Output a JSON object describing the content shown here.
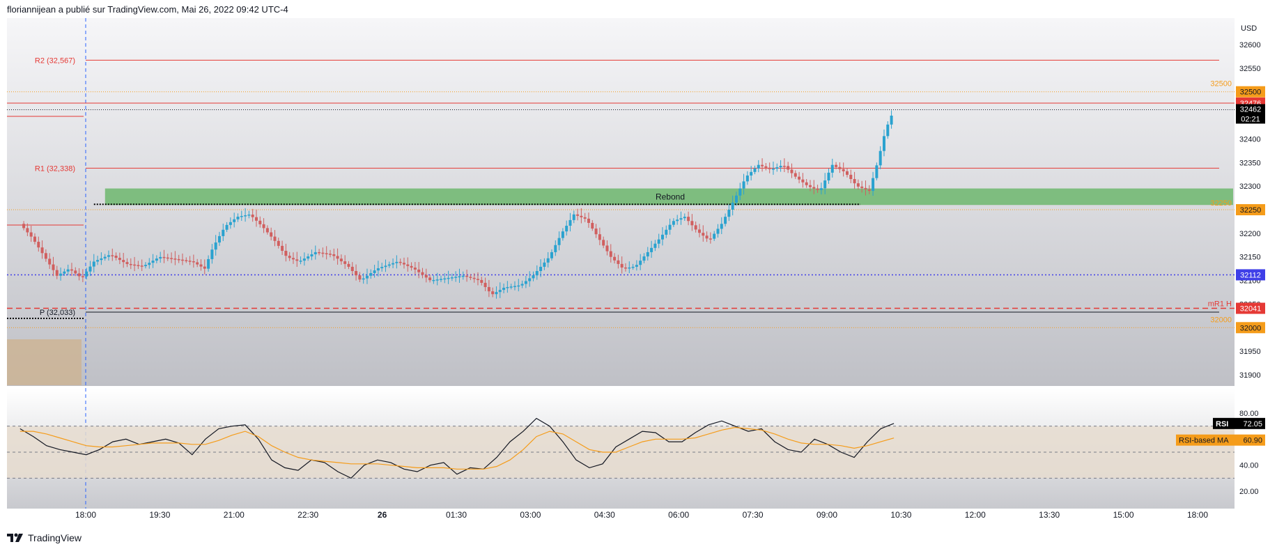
{
  "header": {
    "published_text": "floriannijean a publié sur TradingView.com, Mai 26, 2022 09:42 UTC-4"
  },
  "footer": {
    "brand_text": "TradingView"
  },
  "colors": {
    "bull": "#2aa2cf",
    "bear": "#d05f5f",
    "resistance": "#e53935",
    "orange_level": "#f59c1a",
    "pivot_blue": "#3f3fe8",
    "zone_green": "#66b566",
    "rsi_line": "#131722",
    "rsi_ma": "#f59c1a",
    "rsi_band": "#e6dccf"
  },
  "chart_data": [
    {
      "type": "candlestick",
      "title": "",
      "price_unit": "USD",
      "ylim": [
        31850,
        32650
      ],
      "y_ticks": [
        31900,
        31950,
        32000,
        32050,
        32100,
        32150,
        32200,
        32250,
        32300,
        32350,
        32400,
        32450,
        32500,
        32550,
        32600
      ],
      "x_ticks": [
        "18:00",
        "19:30",
        "21:00",
        "22:30",
        "26",
        "01:30",
        "03:00",
        "04:30",
        "06:00",
        "07:30",
        "09:00",
        "10:30",
        "12:00",
        "13:30",
        "15:00",
        "18:00"
      ],
      "grid": false,
      "close_path": [
        [
          "16:40",
          32220
        ],
        [
          "16:55",
          32190
        ],
        [
          "17:10",
          32150
        ],
        [
          "17:25",
          32110
        ],
        [
          "17:40",
          32125
        ],
        [
          "17:55",
          32105
        ],
        [
          "18:10",
          32140
        ],
        [
          "18:30",
          32155
        ],
        [
          "18:50",
          32135
        ],
        [
          "19:10",
          32130
        ],
        [
          "19:30",
          32150
        ],
        [
          "19:50",
          32145
        ],
        [
          "20:10",
          32140
        ],
        [
          "20:25",
          32125
        ],
        [
          "20:35",
          32170
        ],
        [
          "20:50",
          32215
        ],
        [
          "21:05",
          32235
        ],
        [
          "21:20",
          32240
        ],
        [
          "21:35",
          32215
        ],
        [
          "21:50",
          32185
        ],
        [
          "22:05",
          32150
        ],
        [
          "22:20",
          32140
        ],
        [
          "22:40",
          32160
        ],
        [
          "23:00",
          32155
        ],
        [
          "23:20",
          32130
        ],
        [
          "23:35",
          32100
        ],
        [
          "23:55",
          32125
        ],
        [
          "00:20",
          32140
        ],
        [
          "00:40",
          32125
        ],
        [
          "01:00",
          32100
        ],
        [
          "01:20",
          32105
        ],
        [
          "01:40",
          32110
        ],
        [
          "02:00",
          32100
        ],
        [
          "02:15",
          32070
        ],
        [
          "02:30",
          32085
        ],
        [
          "02:50",
          32090
        ],
        [
          "03:05",
          32110
        ],
        [
          "03:25",
          32150
        ],
        [
          "03:40",
          32200
        ],
        [
          "03:55",
          32240
        ],
        [
          "04:10",
          32230
        ],
        [
          "04:25",
          32190
        ],
        [
          "04:40",
          32150
        ],
        [
          "04:55",
          32125
        ],
        [
          "05:10",
          32130
        ],
        [
          "05:25",
          32160
        ],
        [
          "05:40",
          32190
        ],
        [
          "05:55",
          32225
        ],
        [
          "06:10",
          32235
        ],
        [
          "06:25",
          32205
        ],
        [
          "06:40",
          32185
        ],
        [
          "06:55",
          32220
        ],
        [
          "07:10",
          32270
        ],
        [
          "07:25",
          32320
        ],
        [
          "07:40",
          32345
        ],
        [
          "07:55",
          32335
        ],
        [
          "08:10",
          32345
        ],
        [
          "08:25",
          32320
        ],
        [
          "08:40",
          32300
        ],
        [
          "08:55",
          32290
        ],
        [
          "09:10",
          32345
        ],
        [
          "09:25",
          32330
        ],
        [
          "09:40",
          32300
        ],
        [
          "09:55",
          32290
        ],
        [
          "10:05",
          32350
        ],
        [
          "10:15",
          32420
        ],
        [
          "10:25",
          32462
        ]
      ],
      "last_price": {
        "label": "32462",
        "countdown": "02:21"
      },
      "levels": [
        {
          "name": "R2",
          "label": "R2 (32,567)",
          "value": 32567,
          "style": "pivot"
        },
        {
          "name": "R1",
          "label": "R1 (32,338)",
          "value": 32338,
          "style": "pivot"
        },
        {
          "name": "P",
          "label": "P (32,033)",
          "value": 32033,
          "style": "pivot"
        },
        {
          "name": "32500",
          "label": "32500",
          "value": 32500,
          "style": "orange-dotted",
          "axis_label": "32500"
        },
        {
          "name": "32476",
          "value": 32476,
          "style": "red",
          "axis_label": "32476"
        },
        {
          "name": "32250",
          "label": "32250",
          "value": 32250,
          "style": "orange-dotted",
          "axis_label": "32250"
        },
        {
          "name": "32112",
          "value": 32112,
          "style": "blue-dotted",
          "axis_label": "32112"
        },
        {
          "name": "mR1 H",
          "label": "mR1 H",
          "value": 32041,
          "style": "red-dashed",
          "axis_label": "32041"
        },
        {
          "name": "32000",
          "label": "32000",
          "value": 32000,
          "style": "orange-dotted",
          "axis_label": "32000"
        }
      ],
      "zone": {
        "label": "Rebond",
        "from": 32260,
        "to": 32295,
        "start_time": "18:10"
      },
      "vertical_marker_time": "18:00"
    },
    {
      "type": "line",
      "title": "RSI",
      "ylim": [
        10,
        90
      ],
      "y_ticks": [
        20,
        40,
        60,
        80
      ],
      "band": [
        30,
        70
      ],
      "series": [
        {
          "name": "RSI",
          "value_label": "72.05",
          "values": [
            68,
            62,
            55,
            52,
            50,
            48,
            52,
            58,
            60,
            56,
            58,
            60,
            57,
            48,
            60,
            68,
            70,
            71,
            60,
            44,
            38,
            36,
            44,
            42,
            35,
            30,
            40,
            44,
            42,
            37,
            35,
            40,
            42,
            33,
            38,
            37,
            46,
            58,
            66,
            76,
            70,
            58,
            44,
            38,
            41,
            54,
            60,
            66,
            65,
            58,
            58,
            65,
            71,
            74,
            70,
            66,
            68,
            58,
            52,
            50,
            60,
            56,
            50,
            46,
            58,
            68,
            72.05
          ]
        },
        {
          "name": "RSI-based MA",
          "value_label": "60.90",
          "values": [
            66,
            66,
            64,
            61,
            58,
            55,
            54,
            54,
            55,
            56,
            57,
            57,
            57,
            56,
            56,
            59,
            63,
            66,
            62,
            55,
            50,
            46,
            44,
            43,
            42,
            41,
            41,
            41,
            40,
            39,
            38,
            38,
            38,
            37,
            37,
            37,
            39,
            44,
            52,
            62,
            66,
            64,
            58,
            52,
            50,
            50,
            54,
            58,
            60,
            60,
            60,
            61,
            64,
            67,
            69,
            68,
            67,
            64,
            60,
            57,
            56,
            56,
            55,
            53,
            55,
            58,
            60.9
          ]
        }
      ]
    }
  ]
}
